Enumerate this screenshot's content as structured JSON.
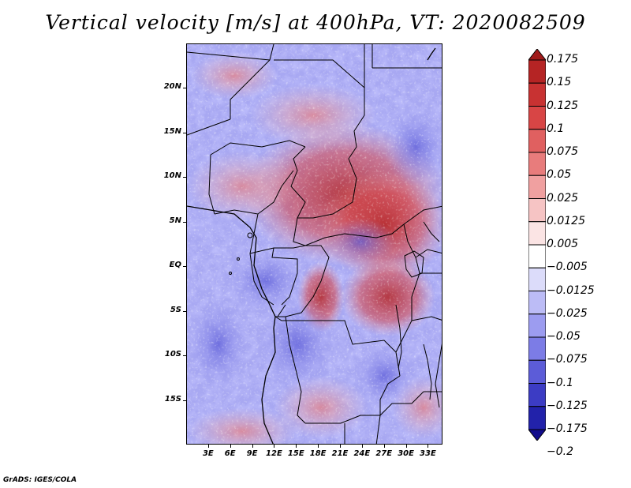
{
  "title": "Vertical velocity [m/s] at 400hPa, VT: 2020082509",
  "credit": "GrADS: IGES/COLA",
  "map": {
    "variable": "Vertical velocity",
    "units": "m/s",
    "level": "400hPa",
    "valid_time": "2020082509",
    "lon_range": [
      0,
      35
    ],
    "lat_range": [
      -20,
      25
    ],
    "lat_ticks": [
      {
        "value": 20,
        "label": "20N"
      },
      {
        "value": 15,
        "label": "15N"
      },
      {
        "value": 10,
        "label": "10N"
      },
      {
        "value": 5,
        "label": "5N"
      },
      {
        "value": 0,
        "label": "EQ"
      },
      {
        "value": -5,
        "label": "5S"
      },
      {
        "value": -10,
        "label": "10S"
      },
      {
        "value": -15,
        "label": "15S"
      }
    ],
    "lon_ticks": [
      {
        "value": 3,
        "label": "3E"
      },
      {
        "value": 6,
        "label": "6E"
      },
      {
        "value": 9,
        "label": "9E"
      },
      {
        "value": 12,
        "label": "12E"
      },
      {
        "value": 15,
        "label": "15E"
      },
      {
        "value": 18,
        "label": "18E"
      },
      {
        "value": 21,
        "label": "21E"
      },
      {
        "value": 24,
        "label": "24E"
      },
      {
        "value": 27,
        "label": "27E"
      },
      {
        "value": 30,
        "label": "30E"
      },
      {
        "value": 33,
        "label": "33E"
      }
    ]
  },
  "colorbar": {
    "labels": [
      "0.175",
      "0.15",
      "0.125",
      "0.1",
      "0.075",
      "0.05",
      "0.025",
      "0.0125",
      "0.005",
      "−0.005",
      "−0.0125",
      "−0.025",
      "−0.05",
      "−0.075",
      "−0.1",
      "−0.125",
      "−0.175",
      "−0.2"
    ],
    "colors": [
      "#a01a1a",
      "#b52424",
      "#c83232",
      "#d84545",
      "#e06060",
      "#e87c7c",
      "#f0a0a0",
      "#f6c4c4",
      "#fbe4e4",
      "#ffffff",
      "#dcdcfa",
      "#bcbcf6",
      "#9c9cf0",
      "#7c7ce6",
      "#5c5cd8",
      "#3c3cc4",
      "#2222aa",
      "#120c8c"
    ]
  }
}
